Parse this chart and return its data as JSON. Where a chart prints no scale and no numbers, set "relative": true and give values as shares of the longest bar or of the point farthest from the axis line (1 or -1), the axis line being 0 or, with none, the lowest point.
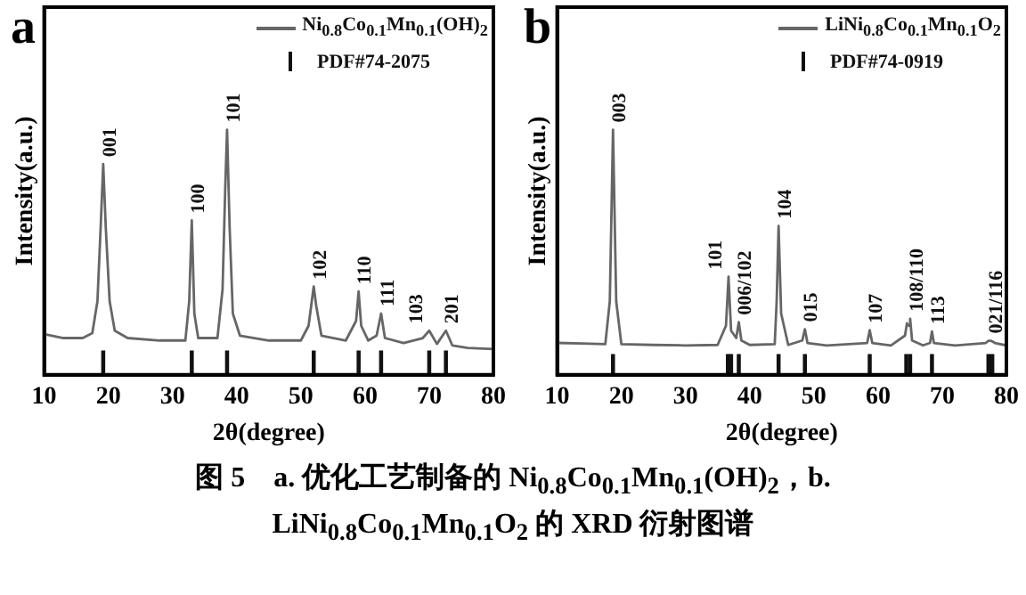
{
  "chart_data": [
    {
      "type": "line",
      "title": "a",
      "xlabel": "2θ(degree)",
      "ylabel": "Intensity(a.u.)",
      "relative": true,
      "xlim": [
        10,
        80
      ],
      "xticks": [
        10,
        20,
        30,
        40,
        50,
        60,
        70,
        80
      ],
      "tick_labels": "x",
      "legend": "top right",
      "series": [
        {
          "name": "Ni$_{0.8}$Co$_{0.1}$Mn$_{0.1}$(OH)$_{2}$",
          "type": "line",
          "color": "#666666",
          "x": [
            10,
            13,
            16,
            17.5,
            18.3,
            18.8,
            19.2,
            19.6,
            20.2,
            21,
            23,
            28,
            32,
            32.6,
            33,
            33.4,
            34,
            37,
            37.8,
            38.2,
            38.5,
            38.9,
            39.4,
            40.5,
            45,
            50,
            51.2,
            51.7,
            52,
            52.4,
            53.2,
            57,
            58.6,
            59,
            59.4,
            60.5,
            61.8,
            62.5,
            63.1,
            66,
            69,
            70,
            71.2,
            72.6,
            73.6,
            76,
            80
          ],
          "values": [
            0.166,
            0.15,
            0.15,
            0.17,
            0.3,
            0.6,
            0.86,
            0.6,
            0.3,
            0.18,
            0.15,
            0.14,
            0.14,
            0.3,
            0.63,
            0.25,
            0.15,
            0.15,
            0.35,
            0.75,
            1.0,
            0.6,
            0.25,
            0.16,
            0.14,
            0.14,
            0.2,
            0.3,
            0.36,
            0.28,
            0.16,
            0.14,
            0.22,
            0.34,
            0.2,
            0.14,
            0.16,
            0.25,
            0.15,
            0.13,
            0.15,
            0.18,
            0.126,
            0.18,
            0.12,
            0.11,
            0.105
          ]
        },
        {
          "name": "PDF#74-2075",
          "type": "bar",
          "color": "#111111",
          "x": [
            19.2,
            33.0,
            38.5,
            52.0,
            59.0,
            62.5,
            70.0,
            72.6
          ],
          "values": [
            0.097,
            0.097,
            0.097,
            0.097,
            0.097,
            0.097,
            0.097,
            0.097
          ]
        }
      ],
      "annotations": [
        {
          "text": "001",
          "x": 19.2,
          "y": 0.86
        },
        {
          "text": "100",
          "x": 33.0,
          "y": 0.63
        },
        {
          "text": "101",
          "x": 38.5,
          "y": 1.0
        },
        {
          "text": "102",
          "x": 52.0,
          "y": 0.36
        },
        {
          "text": "110",
          "x": 59.0,
          "y": 0.34
        },
        {
          "text": "111",
          "x": 62.5,
          "y": 0.25
        },
        {
          "text": "103",
          "x": 70.0,
          "y": 0.18
        },
        {
          "text": "201",
          "x": 72.6,
          "y": 0.18
        }
      ]
    },
    {
      "type": "line",
      "title": "b",
      "xlabel": "2θ(degree)",
      "ylabel": "Intensity(a.u.)",
      "relative": true,
      "xlim": [
        10,
        80
      ],
      "xticks": [
        10,
        20,
        30,
        40,
        50,
        60,
        70,
        80
      ],
      "tick_labels": "x",
      "legend": "top right",
      "series": [
        {
          "name": "LiNi$_{0.8}$Co$_{0.1}$Mn$_{0.1}$O$_{2}$",
          "type": "line",
          "color": "#666666",
          "x": [
            10,
            14,
            17.5,
            18.2,
            18.7,
            19.2,
            20,
            25,
            30,
            35,
            36.3,
            36.7,
            37.1,
            37.9,
            38.3,
            38.7,
            40,
            43.9,
            44.2,
            44.5,
            44.9,
            46,
            48.2,
            48.6,
            49,
            52,
            58.3,
            58.7,
            59.1,
            62,
            64.2,
            64.5,
            64.8,
            65.0,
            65.3,
            67,
            68.1,
            68.4,
            68.7,
            72,
            76.8,
            77.2,
            77.6,
            78.2,
            80
          ],
          "values": [
            0.13,
            0.128,
            0.125,
            0.3,
            1.0,
            0.3,
            0.125,
            0.122,
            0.12,
            0.122,
            0.2,
            0.4,
            0.18,
            0.15,
            0.215,
            0.14,
            0.122,
            0.125,
            0.3,
            0.607,
            0.25,
            0.122,
            0.14,
            0.186,
            0.13,
            0.12,
            0.13,
            0.182,
            0.13,
            0.12,
            0.16,
            0.21,
            0.2,
            0.229,
            0.14,
            0.12,
            0.13,
            0.177,
            0.13,
            0.12,
            0.13,
            0.139,
            0.139,
            0.13,
            0.12
          ]
        },
        {
          "name": "PDF#74-0919",
          "type": "bar",
          "color": "#111111",
          "x": [
            18.7,
            36.6,
            37.1,
            38.3,
            44.5,
            48.6,
            58.7,
            64.4,
            65.0,
            68.4,
            77.2,
            77.8
          ],
          "values": [
            0.082,
            0.082,
            0.082,
            0.082,
            0.082,
            0.082,
            0.082,
            0.082,
            0.082,
            0.082,
            0.082,
            0.082
          ]
        }
      ],
      "annotations": [
        {
          "text": "003",
          "x": 18.7,
          "y": 1.0
        },
        {
          "text": "101",
          "x": 36.7,
          "y": 0.4
        },
        {
          "text": "006/102",
          "x": 38.3,
          "y": 0.215
        },
        {
          "text": "104",
          "x": 44.5,
          "y": 0.607
        },
        {
          "text": "015",
          "x": 48.6,
          "y": 0.186
        },
        {
          "text": "107",
          "x": 58.7,
          "y": 0.182
        },
        {
          "text": "108/110",
          "x": 65.0,
          "y": 0.229
        },
        {
          "text": "113",
          "x": 68.4,
          "y": 0.177
        },
        {
          "text": "021/116",
          "x": 77.4,
          "y": 0.139
        }
      ]
    },
    {
      "type": "other",
      "title": "图 5　a. 优化工艺制备的 Ni$_{0.8}$Co$_{0.1}$Mn$_{0.1}$(OH)$_{2}$，b. LiNi$_{0.8}$Co$_{0.1}$Mn$_{0.1}$O$_{2}$ 的 XRD 衍射图谱"
    }
  ]
}
